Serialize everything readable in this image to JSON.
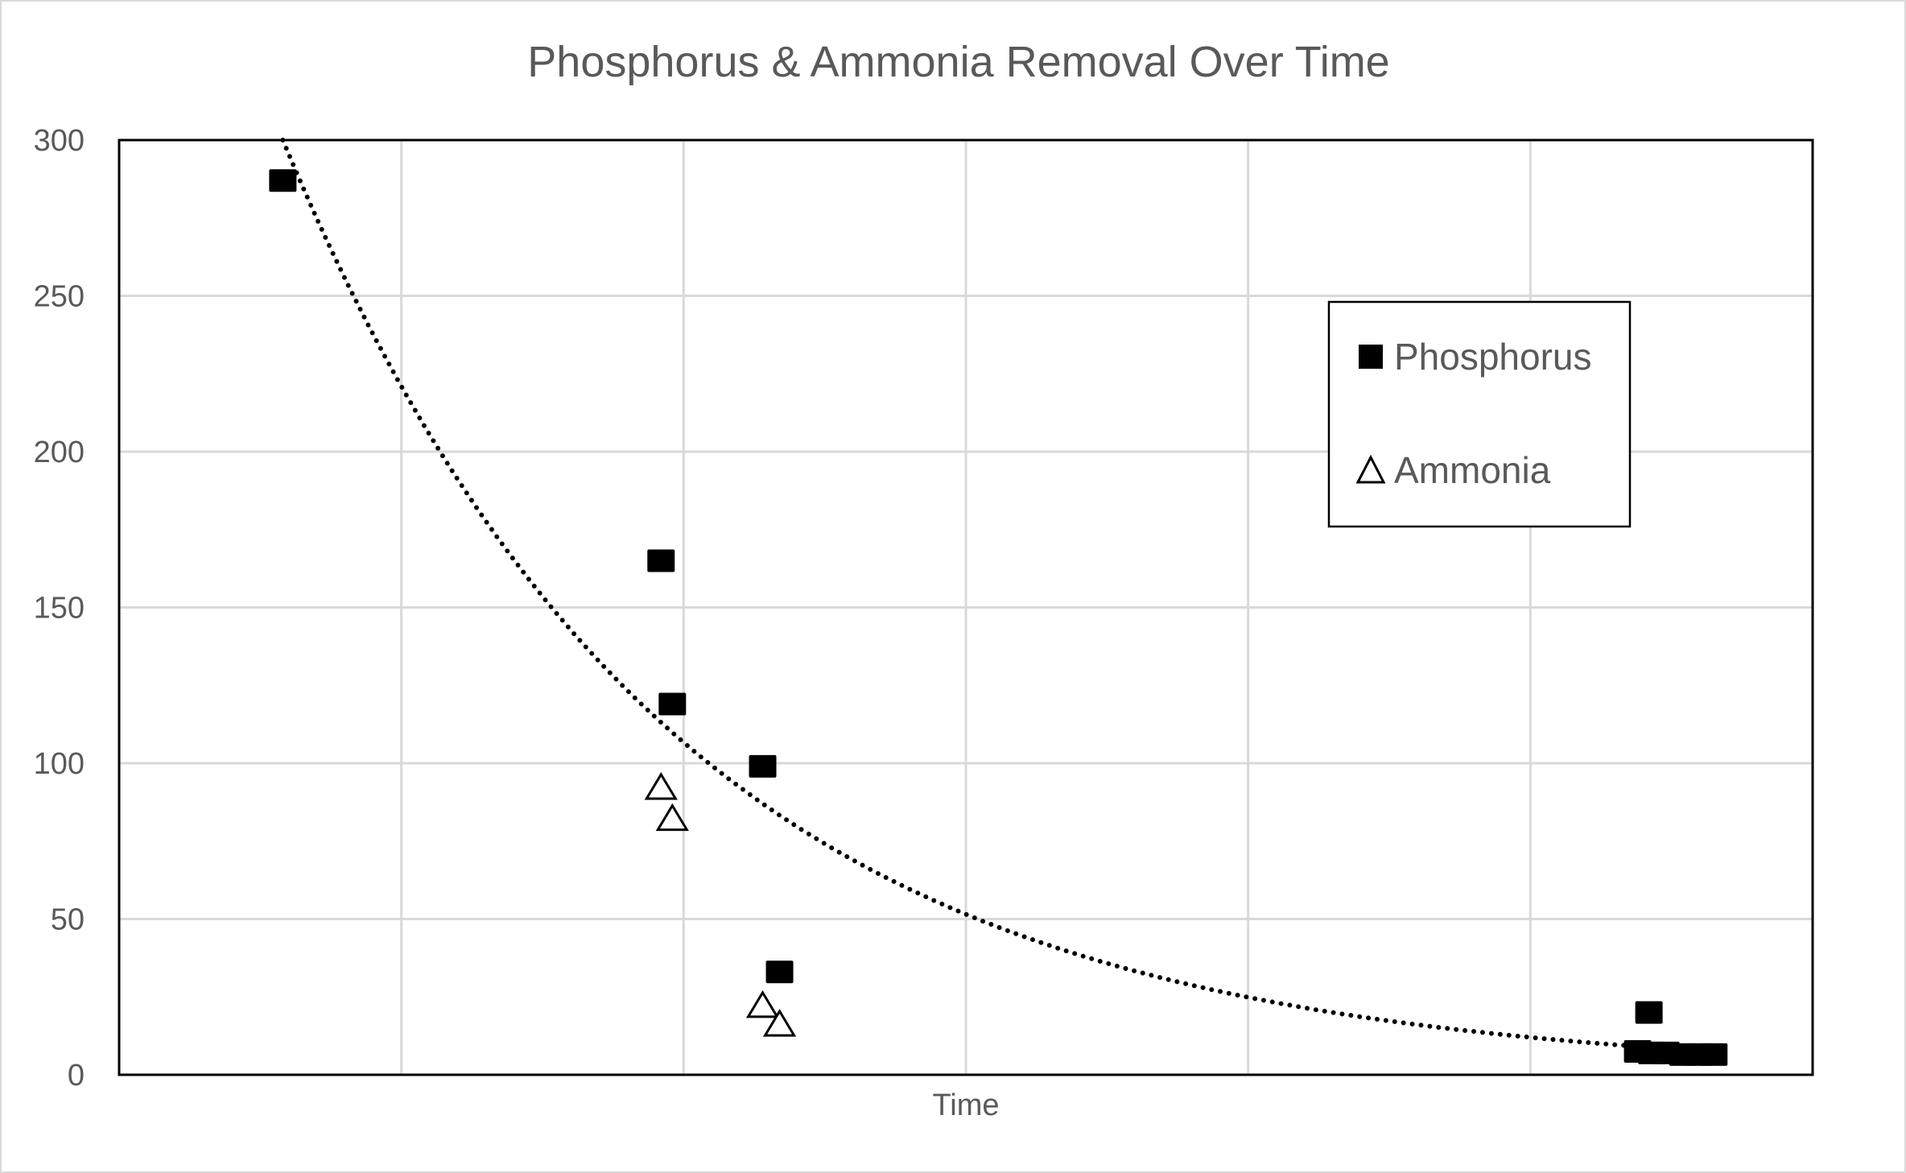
{
  "chart_data": {
    "type": "scatter",
    "title": "Phosphorus & Ammonia Removal Over Time",
    "xlabel": "Time",
    "ylabel": "",
    "xlim": [
      0,
      6
    ],
    "ylim": [
      0,
      300
    ],
    "yticks": [
      "0",
      "50",
      "100",
      "150",
      "200",
      "250",
      "300"
    ],
    "ytick_values": [
      0,
      50,
      100,
      150,
      200,
      250,
      300
    ],
    "xgrid_values": [
      1,
      2,
      3,
      4,
      5
    ],
    "grid": true,
    "legend_position": "top-right",
    "series": [
      {
        "name": "Phosphorus",
        "marker": "filled-square",
        "color": "#000000",
        "x": [
          0.58,
          1.92,
          1.96,
          2.28,
          2.34,
          5.42,
          5.38,
          5.43,
          5.48,
          5.54,
          5.6,
          5.65
        ],
        "y": [
          287,
          165,
          119,
          99,
          33,
          20,
          7.5,
          7,
          7,
          6.5,
          6.5,
          6.5
        ]
      },
      {
        "name": "Ammonia",
        "marker": "open-triangle",
        "color": "#000000",
        "x": [
          1.92,
          1.96,
          2.28,
          2.34
        ],
        "y": [
          92,
          82,
          22,
          16
        ]
      }
    ],
    "trendline": {
      "type": "exponential",
      "series": "Phosphorus",
      "a": 457.6,
      "b": -0.728,
      "x_range": [
        0.58,
        5.64
      ],
      "style": "dotted"
    }
  }
}
